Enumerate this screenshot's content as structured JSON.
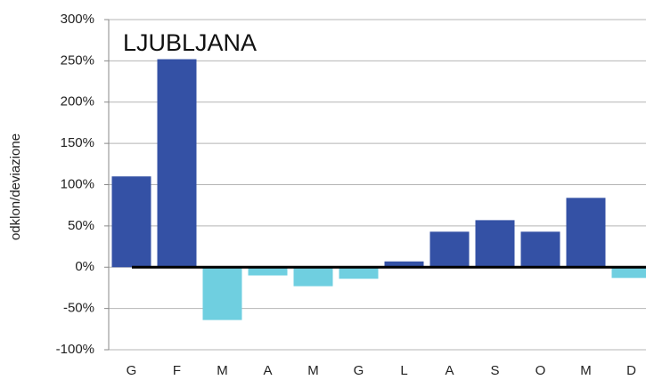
{
  "chart_data": {
    "type": "bar",
    "title": "LJUBLJANA",
    "y_label": "odklon/deviazione",
    "categories": [
      "G",
      "F",
      "M",
      "A",
      "M",
      "G",
      "L",
      "A",
      "S",
      "O",
      "M",
      "D"
    ],
    "values": [
      110,
      252,
      -64,
      -10,
      -23,
      -14,
      7,
      43,
      57,
      43,
      84,
      -13
    ],
    "positive_color": "#3451a5",
    "negative_color": "#6fcfe0",
    "ylim": [
      -100,
      300
    ],
    "yticks": [
      {
        "value": -100,
        "label": "-100%"
      },
      {
        "value": -50,
        "label": "-50%"
      },
      {
        "value": 0,
        "label": "0%"
      },
      {
        "value": 50,
        "label": "50%"
      },
      {
        "value": 100,
        "label": "100%"
      },
      {
        "value": 150,
        "label": "150%"
      },
      {
        "value": 200,
        "label": "200%"
      },
      {
        "value": 250,
        "label": "250%"
      },
      {
        "value": 300,
        "label": "300%"
      }
    ],
    "grid": true
  }
}
